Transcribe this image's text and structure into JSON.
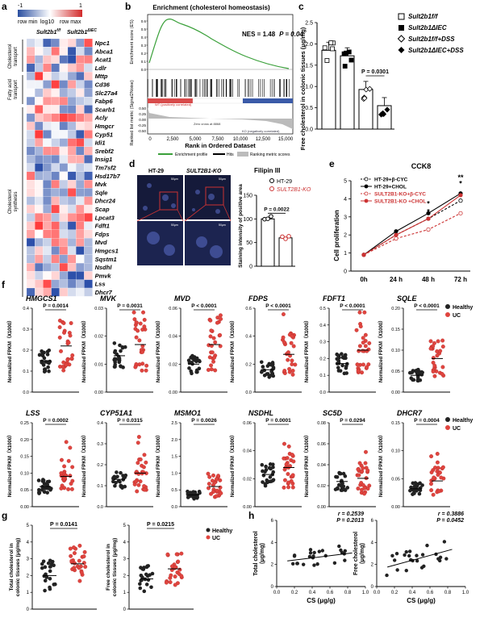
{
  "panels": {
    "a": {
      "label": "a",
      "colorbar": {
        "min_label": "-1",
        "mid_label": "log10",
        "max_label": "1",
        "row_min": "row min",
        "row_max": "row max"
      },
      "col_groups": [
        "Sult2b1f/f",
        "Sult2b1ΔIEC"
      ],
      "col_group_base": [
        "Sult2b1",
        "Sult2b1"
      ],
      "col_group_sup": [
        "f/f",
        "ΔIEC"
      ],
      "row_groups": [
        "Cholesterol transport",
        "Fatty acid transport",
        "Cholesterol synthesis"
      ],
      "genes": [
        "Npc1",
        "Abca1",
        "Acat1",
        "Ldlr",
        "Mttp",
        "Cd36",
        "Slc27a4",
        "Fabp6",
        "Scarb1",
        "Acly",
        "Hmgcr",
        "Cyp51",
        "Idi1",
        "Srebf2",
        "Insig1",
        "Tm7sf2",
        "Hsd17b7",
        "Mvk",
        "Sqle",
        "Dhcr24",
        "Scap",
        "Lpcat3",
        "Fdft1",
        "Fdps",
        "Mvd",
        "Hmgcs1",
        "Sqstm1",
        "Nsdhl",
        "Pmvk",
        "Lss",
        "Dhcr7"
      ]
    },
    "b": {
      "label": "b",
      "title": "Enrichment (cholesterol homeostasis)",
      "nes_text": "NES = 1.48",
      "p_text": "P = 0.04",
      "ylabel_top": "Enrichment score (ES)",
      "ylabel_bottom": "Ranked list metric (Signal2Noise)",
      "xlabel": "Rank in Ordered Dataset",
      "xticks": [
        "0",
        "2,500",
        "5,000",
        "7,500",
        "10,000",
        "12,500",
        "15,000"
      ],
      "yticks_top": [
        "0.6",
        "0.5",
        "0.4",
        "0.3",
        "0.2",
        "0.1",
        "0.0"
      ],
      "yticks_bottom": [
        "0.50",
        "0.25",
        "0.00",
        "-0.25",
        "-0.50"
      ],
      "legend": [
        "Enrichment profile",
        "Hits",
        "Ranking metric scores"
      ]
    },
    "c": {
      "label": "c",
      "ylabel": "Free cholesterol in colonic tissues (μg/mg)",
      "yticks": [
        "0.0",
        "0.5",
        "1.0",
        "1.5",
        "2.0",
        "2.5"
      ],
      "p_text": "P = 0.0301",
      "legend": [
        "Sult2b1f/f",
        "Sult2b1ΔIEC",
        "Sult2b1f/f+DSS",
        "Sult2b1ΔIEC+DSS"
      ]
    },
    "d": {
      "label": "d",
      "col_titles": [
        "HT-29",
        "SULT2B1-KO"
      ],
      "stain_title": "Filipin III",
      "legend": [
        "HT-29",
        "SULT2B1-KO"
      ],
      "ylabel": "Staining intensity of positive area",
      "yticks": [
        "0",
        "50",
        "100",
        "150"
      ],
      "p_text": "P = 0.0022",
      "scalebar": "50μm"
    },
    "e": {
      "label": "e",
      "title": "CCK8",
      "ylabel": "Cell proliferation",
      "xticks": [
        "0h",
        "24 h",
        "48 h",
        "72 h"
      ],
      "yticks": [
        "0",
        "1",
        "2",
        "3",
        "4",
        "5"
      ],
      "legend": [
        "HT-29+β-CYC",
        "HT-29+CHOL",
        "SULT2B1-KO+β-CYC",
        "SULT2B1-KO +CHOL"
      ],
      "sig": [
        "*",
        "*",
        "**",
        "*"
      ]
    },
    "f": {
      "label": "f",
      "ylabel": "Normalized FPKM（X1000）",
      "legend": [
        "Healthy",
        "UC"
      ]
    },
    "g": {
      "label": "g",
      "ylabels": [
        "Total cholesterol in colonic tissues (μg/mg)",
        "Free cholesterol in colonic tissues (μg/mg)"
      ],
      "p_texts": [
        "P = 0.0141",
        "P = 0.0215"
      ],
      "yticks": [
        "0",
        "1",
        "2",
        "3",
        "4",
        "5"
      ],
      "legend": [
        "Healthy",
        "UC"
      ]
    },
    "h": {
      "label": "h",
      "xlabel": "CS (μg/g)",
      "xticks": [
        "0.0",
        "0.2",
        "0.4",
        "0.6",
        "0.8",
        "1.0"
      ],
      "ylabels": [
        "Total cholesterol (μg/mg)",
        "Free cholesterol (μg/mg)"
      ],
      "stats": [
        [
          "r = 0.2539",
          "P = 0.2013"
        ],
        [
          "r = 0.3886",
          "P = 0.0452"
        ]
      ],
      "yticks": [
        "0",
        "2",
        "4",
        "6"
      ]
    }
  },
  "chart_data": [
    {
      "type": "bar",
      "panel": "c",
      "categories": [
        "Sult2b1f/f",
        "Sult2b1ΔIEC",
        "Sult2b1f/f+DSS",
        "Sult2b1ΔIEC+DSS"
      ],
      "values": [
        1.85,
        1.72,
        0.93,
        0.55
      ],
      "ylim": [
        0,
        2.5
      ],
      "ylabel": "Free cholesterol in colonic tissues (μg/mg)"
    },
    {
      "type": "bar",
      "panel": "d",
      "categories": [
        "HT-29",
        "SULT2B1-KO"
      ],
      "values": [
        100,
        60
      ],
      "ylim": [
        0,
        150
      ],
      "ylabel": "Staining intensity of positive area"
    },
    {
      "type": "line",
      "panel": "e",
      "title": "CCK8",
      "x": [
        "0h",
        "24 h",
        "48 h",
        "72 h"
      ],
      "ylim": [
        0,
        5
      ],
      "ylabel": "Cell proliferation",
      "series": [
        {
          "name": "HT-29+β-CYC",
          "values": [
            0.9,
            2.0,
            2.9,
            3.9
          ]
        },
        {
          "name": "HT-29+CHOL",
          "values": [
            0.9,
            2.2,
            3.2,
            4.3
          ]
        },
        {
          "name": "SULT2B1-KO+β-CYC",
          "values": [
            0.9,
            1.8,
            2.3,
            3.2
          ]
        },
        {
          "name": "SULT2B1-KO +CHOL",
          "values": [
            0.9,
            2.0,
            2.9,
            4.2
          ]
        }
      ]
    },
    {
      "type": "scatter",
      "panel": "f",
      "genes": [
        {
          "name": "HMGCS1",
          "p": "P = 0.0014",
          "ylim": [
            0,
            0.4
          ],
          "yticks": [
            "0.0",
            "0.1",
            "0.2",
            "0.3",
            "0.4"
          ],
          "healthy_mean": 0.15,
          "uc_mean": 0.22
        },
        {
          "name": "MVK",
          "p": "P = 0.0031",
          "ylim": [
            0,
            0.03
          ],
          "yticks": [
            "0.00",
            "0.01",
            "0.02",
            "0.03"
          ],
          "healthy_mean": 0.013,
          "uc_mean": 0.017
        },
        {
          "name": "MVD",
          "p": "P < 0.0001",
          "ylim": [
            0,
            0.06
          ],
          "yticks": [
            "0.00",
            "0.02",
            "0.04",
            "0.06"
          ],
          "healthy_mean": 0.02,
          "uc_mean": 0.034
        },
        {
          "name": "FDPS",
          "p": "P < 0.0001",
          "ylim": [
            0,
            0.6
          ],
          "yticks": [
            "0.0",
            "0.2",
            "0.4",
            "0.6"
          ],
          "healthy_mean": 0.16,
          "uc_mean": 0.27
        },
        {
          "name": "FDFT1",
          "p": "P < 0.0001",
          "ylim": [
            0,
            0.5
          ],
          "yticks": [
            "0.0",
            "0.1",
            "0.2",
            "0.3",
            "0.4",
            "0.5"
          ],
          "healthy_mean": 0.17,
          "uc_mean": 0.25
        },
        {
          "name": "SQLE",
          "p": "P < 0.0001",
          "ylim": [
            0,
            0.2
          ],
          "yticks": [
            "0.00",
            "0.05",
            "0.10",
            "0.15",
            "0.20"
          ],
          "healthy_mean": 0.04,
          "uc_mean": 0.08
        },
        {
          "name": "LSS",
          "p": "P = 0.0002",
          "ylim": [
            0,
            0.25
          ],
          "yticks": [
            "0.00",
            "0.05",
            "0.10",
            "0.15",
            "0.20",
            "0.25"
          ],
          "healthy_mean": 0.06,
          "uc_mean": 0.09
        },
        {
          "name": "CYP51A1",
          "p": "P = 0.0315",
          "ylim": [
            0,
            0.4
          ],
          "yticks": [
            "0.0",
            "0.1",
            "0.2",
            "0.3",
            "0.4"
          ],
          "healthy_mean": 0.13,
          "uc_mean": 0.16
        },
        {
          "name": "MSMO1",
          "p": "P = 0.0026",
          "ylim": [
            0,
            2.5
          ],
          "yticks": [
            "0.0",
            "0.5",
            "1.0",
            "1.5",
            "2.0",
            "2.5"
          ],
          "healthy_mean": 0.35,
          "uc_mean": 0.6
        },
        {
          "name": "NSDHL",
          "p": "P = 0.0001",
          "ylim": [
            0,
            0.06
          ],
          "yticks": [
            "0.00",
            "0.02",
            "0.04",
            "0.06"
          ],
          "healthy_mean": 0.023,
          "uc_mean": 0.028
        },
        {
          "name": "SC5D",
          "p": "P = 0.0294",
          "ylim": [
            0,
            0.08
          ],
          "yticks": [
            "0.00",
            "0.02",
            "0.04",
            "0.06",
            "0.08"
          ],
          "healthy_mean": 0.024,
          "uc_mean": 0.027
        },
        {
          "name": "DHCR7",
          "p": "P = 0.0004",
          "ylim": [
            0,
            0.15
          ],
          "yticks": [
            "0.00",
            "0.05",
            "0.10",
            "0.15"
          ],
          "healthy_mean": 0.032,
          "uc_mean": 0.046
        }
      ]
    },
    {
      "type": "scatter",
      "panel": "g",
      "categories": [
        "Healthy",
        "UC"
      ],
      "series": [
        {
          "name": "Total cholesterol in colonic tissues (μg/mg)",
          "healthy_mean": 2.0,
          "uc_mean": 2.7
        },
        {
          "name": "Free cholesterol in colonic tissues (μg/mg)",
          "healthy_mean": 1.8,
          "uc_mean": 2.4
        }
      ],
      "ylim": [
        0,
        5
      ]
    },
    {
      "type": "scatter",
      "panel": "h",
      "xlabel": "CS (μg/g)",
      "xlim": [
        0,
        1.0
      ],
      "series": [
        {
          "name": "Total cholesterol (μg/mg)",
          "ylim": [
            0,
            6
          ],
          "r": 0.2539,
          "p": 0.2013
        },
        {
          "name": "Free cholesterol (μg/mg)",
          "ylim": [
            0,
            6
          ],
          "r": 0.3886,
          "p": 0.0452
        }
      ]
    }
  ],
  "colors": {
    "red": "#cc3333",
    "blue": "#2b4fa0",
    "green": "#3aa03a",
    "dot_red": "#e0453f",
    "dot_black": "#222222"
  }
}
